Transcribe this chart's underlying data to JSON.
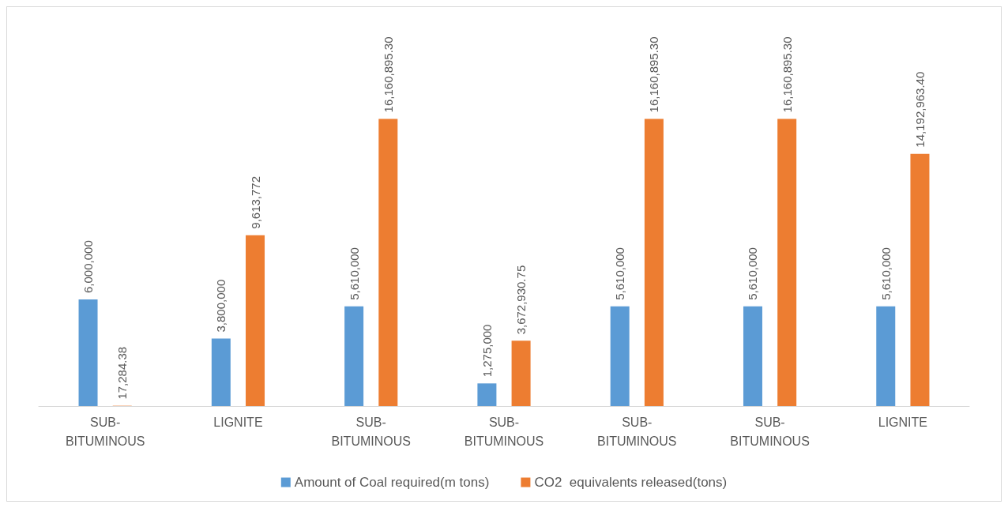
{
  "chart_data": {
    "type": "bar",
    "categories": [
      "SUB-BITUMINOUS",
      "LIGNITE",
      "SUB-BITUMINOUS",
      "SUB-BITUMINOUS",
      "SUB-BITUMINOUS",
      "SUB-BITUMINOUS",
      "LIGNITE"
    ],
    "series": [
      {
        "name": "Amount of Coal required(m tons)",
        "color": "#5b9bd5",
        "values": [
          6000000,
          3800000,
          5610000,
          1275000,
          5610000,
          5610000,
          5610000
        ],
        "value_labels": [
          "6,000,000",
          "3,800,000",
          "5,610,000",
          "1,275,000",
          "5,610,000",
          "5,610,000",
          "5,610,000"
        ]
      },
      {
        "name": "CO2  equivalents released(tons)",
        "color": "#ed7d31",
        "values": [
          17284.38,
          9613772,
          16160895.3,
          3672930.75,
          16160895.3,
          16160895.3,
          14192963.4
        ],
        "value_labels": [
          "17,284.38",
          "9,613,772",
          "16,160,895.30",
          "3,672,930.75",
          "16,160,895.30",
          "16,160,895.30",
          "14,192,963.40"
        ]
      }
    ],
    "legend": "bottom"
  }
}
